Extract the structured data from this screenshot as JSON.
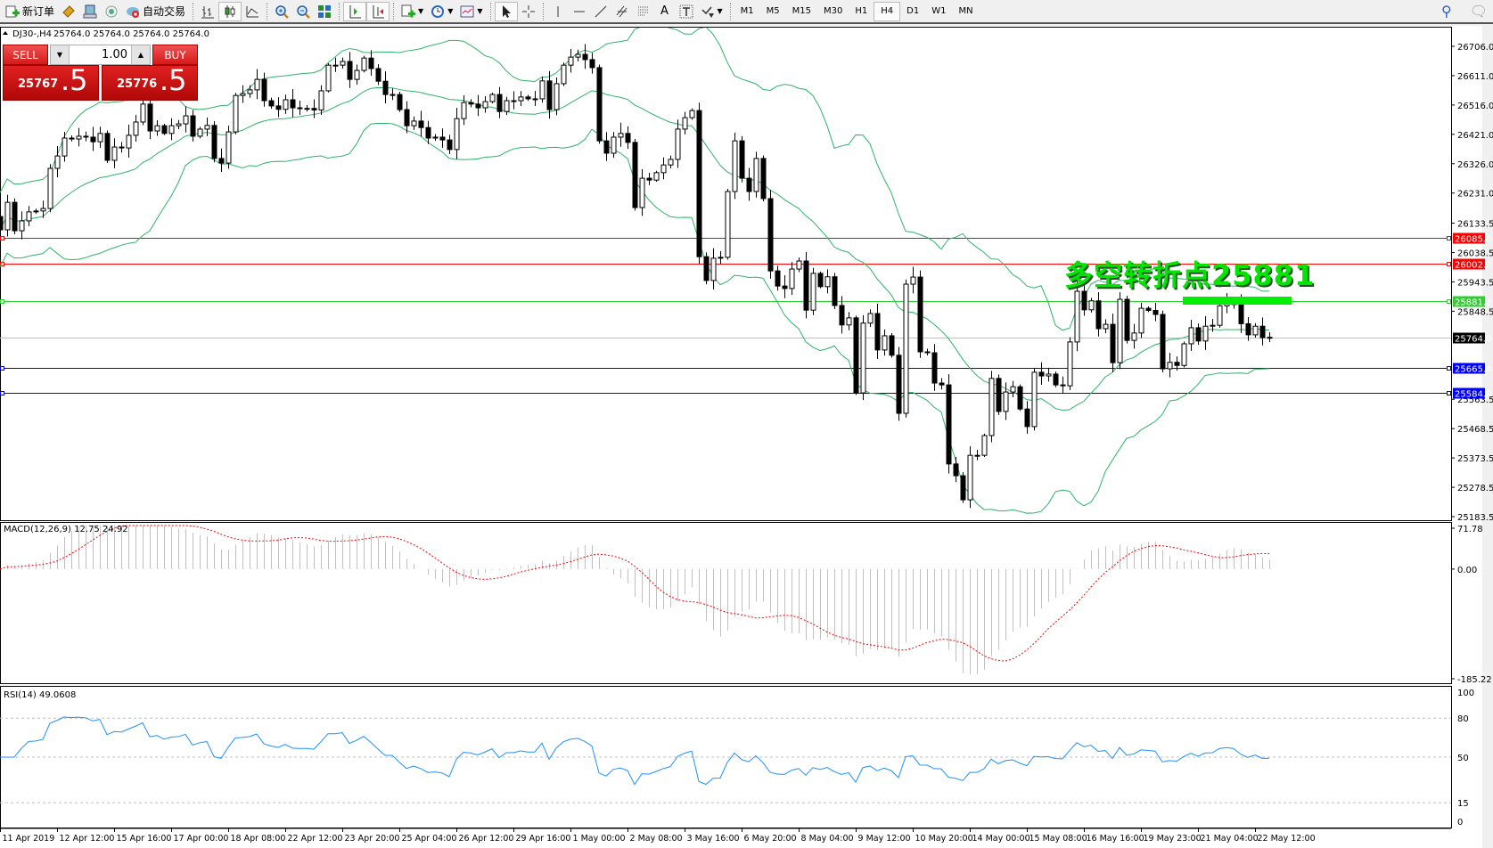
{
  "toolbar": {
    "new_order_label": "新订单",
    "auto_trading_label": "自动交易",
    "timeframes": [
      "M1",
      "M5",
      "M15",
      "M30",
      "H1",
      "H4",
      "D1",
      "W1",
      "MN"
    ],
    "active_timeframe": "H4",
    "icons": [
      "new-order-icon",
      "market-watch-icon",
      "navigator-icon",
      "signals-icon",
      "auto-trading-icon",
      "bar-chart-icon",
      "candlestick-icon",
      "line-chart-icon",
      "zoom-in-icon",
      "zoom-out-icon",
      "tile-windows-icon",
      "chart-shift-icon",
      "autoscroll-icon",
      "indicators-icon",
      "periods-icon",
      "templates-icon",
      "cursor-icon",
      "crosshair-icon",
      "vertical-line-icon",
      "horizontal-line-icon",
      "trendline-icon",
      "equidistant-channel-icon",
      "fibonacci-icon",
      "text-icon",
      "text-label-icon",
      "arrows-icon",
      "search-icon",
      "chat-icon"
    ]
  },
  "chart_header": {
    "symbol_period": "DJ30-,H4",
    "ohlc": "25764.0 25764.0 25764.0 25764.0"
  },
  "one_click": {
    "sell_label": "SELL",
    "buy_label": "BUY",
    "lots": "1.00",
    "sell_price_main": "25767",
    "sell_price_big": ".5",
    "buy_price_main": "25776",
    "buy_price_big": ".5"
  },
  "annotation": {
    "text": "多空转折点25881",
    "color": "#00e600"
  },
  "colors": {
    "bollinger": "#2fb36a",
    "macd_histogram": "#c0c0c0",
    "macd_signal": "#ff0000",
    "rsi": "#1e90ff",
    "bull_candle": "#ffffff",
    "bear_candle": "#000000"
  },
  "chart_data": {
    "type": "candlestick",
    "symbol": "DJ30-",
    "timeframe": "H4",
    "closes": [
      26112,
      26201,
      26109,
      26141,
      26170,
      26173,
      26181,
      26311,
      26351,
      26409,
      26406,
      26415,
      26412,
      26397,
      26424,
      26337,
      26380,
      26377,
      26418,
      26461,
      26519,
      26432,
      26449,
      26424,
      26449,
      26455,
      26481,
      26415,
      26438,
      26450,
      26343,
      26328,
      26429,
      26547,
      26553,
      26565,
      26599,
      26530,
      26513,
      26502,
      26533,
      26507,
      26505,
      26505,
      26500,
      26562,
      26645,
      26645,
      26657,
      26599,
      26628,
      26668,
      26634,
      26593,
      26550,
      26550,
      26501,
      26449,
      26464,
      26443,
      26409,
      26412,
      26403,
      26372,
      26472,
      26524,
      26519,
      26507,
      26527,
      26550,
      26495,
      26530,
      26530,
      26542,
      26536,
      26536,
      26594,
      26501,
      26585,
      26645,
      26671,
      26680,
      26663,
      26637,
      26400,
      26360,
      26412,
      26424,
      26395,
      26184,
      26279,
      26273,
      26297,
      26322,
      26340,
      26438,
      26475,
      26498,
      26025,
      25948,
      26020,
      26023,
      26236,
      26400,
      26279,
      26236,
      26343,
      26213,
      25979,
      25930,
      25922,
      25985,
      26011,
      25852,
      25971,
      25928,
      25960,
      25867,
      25804,
      25827,
      25584,
      25810,
      25841,
      25723,
      25769,
      25706,
      25518,
      25936,
      25959,
      25717,
      25714,
      25616,
      25610,
      25354,
      25316,
      25238,
      25382,
      25382,
      25446,
      25631,
      25524,
      25587,
      25604,
      25532,
      25475,
      25651,
      25639,
      25645,
      25610,
      25607,
      25749,
      25913,
      25853,
      25882,
      25792,
      25806,
      25682,
      25887,
      25754,
      25778,
      25858,
      25851,
      25838,
      25662,
      25683,
      25673,
      25743,
      25795,
      25752,
      25800,
      25803,
      25866,
      25880,
      25870,
      25808,
      25772,
      25800,
      25763,
      25764
    ],
    "price_axis": {
      "range": [
        25183.5,
        26706.0
      ],
      "ticks": [
        "26706.0",
        "26611.0",
        "26516.0",
        "26421.0",
        "26326.0",
        "26231.0",
        "26133.5",
        "26038.5",
        "25943.5",
        "25848.5",
        "25563.5",
        "25468.5",
        "25373.5",
        "25278.5",
        "25183.5"
      ]
    },
    "horizontal_lines": [
      {
        "price": 26085.6,
        "label": "26085.6",
        "color": "#ff0000"
      },
      {
        "price": 26002.2,
        "label": "26002.2",
        "color": "#ff0000"
      },
      {
        "price": 25881.3,
        "label": "25881.3",
        "color": "#32cd32"
      },
      {
        "price": 25764.0,
        "label": "25764.0",
        "color": "#c0c0c0",
        "bid": true
      },
      {
        "price": 25665.4,
        "label": "25665.4",
        "color": "#0000ff"
      },
      {
        "price": 25584.8,
        "label": "25584.8",
        "color": "#0000ff"
      }
    ],
    "bollinger": {
      "period": 20,
      "deviation": 2
    },
    "macd": {
      "label": "MACD(12,26,9) 12.75 24.92",
      "fast": 12,
      "slow": 26,
      "signal": 9,
      "axis_range": [
        -185.22,
        71.78
      ],
      "ticks": [
        "71.78",
        "0.00",
        "-185.22"
      ]
    },
    "rsi": {
      "label": "RSI(14) 49.0608",
      "period": 14,
      "levels": [
        80,
        50,
        15
      ],
      "ticks": [
        "100",
        "80",
        "50",
        "15",
        "0"
      ]
    },
    "x_ticks": [
      "11 Apr 2019",
      "12 Apr 12:00",
      "15 Apr 16:00",
      "17 Apr 00:00",
      "18 Apr 08:00",
      "22 Apr 12:00",
      "23 Apr 20:00",
      "25 Apr 04:00",
      "26 Apr 12:00",
      "29 Apr 16:00",
      "1 May 00:00",
      "2 May 08:00",
      "3 May 16:00",
      "6 May 20:00",
      "8 May 04:00",
      "9 May 12:00",
      "10 May 20:00",
      "14 May 00:00",
      "15 May 08:00",
      "16 May 16:00",
      "19 May 23:00",
      "21 May 04:00",
      "22 May 12:00"
    ]
  }
}
